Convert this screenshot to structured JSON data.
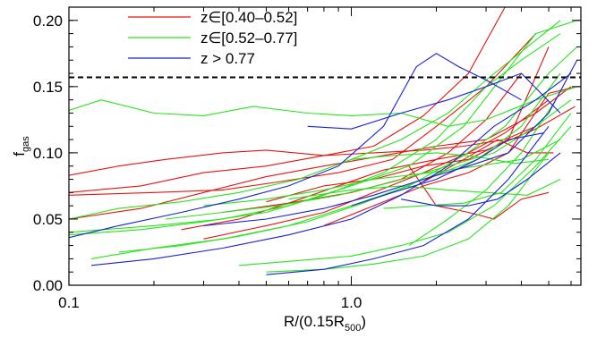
{
  "chart_data": {
    "type": "line",
    "xlabel": "R/(0.15R",
    "xlabel_sub": "500",
    "xlabel_close": ")",
    "ylabel": "f",
    "ylabel_sub": "gas",
    "xscale": "log",
    "xlim": [
      0.1,
      6.5
    ],
    "ylim": [
      0.0,
      0.21
    ],
    "xticks": [
      {
        "value": 0.1,
        "label": "0.1"
      },
      {
        "value": 1.0,
        "label": "1.0"
      }
    ],
    "yticks": [
      {
        "value": 0.0,
        "label": "0.00"
      },
      {
        "value": 0.05,
        "label": "0.05"
      },
      {
        "value": 0.1,
        "label": "0.10"
      },
      {
        "value": 0.15,
        "label": "0.15"
      },
      {
        "value": 0.2,
        "label": "0.20"
      }
    ],
    "legend_position": "top-left",
    "grid": false,
    "reference_line": {
      "y": 0.157,
      "style": "dashed",
      "color": "#000000"
    },
    "groups": [
      {
        "name": "z∈[0.40–0.52]",
        "color": "#e8120f",
        "series": [
          {
            "x": [
              0.1,
              0.15,
              0.22,
              0.35,
              0.5,
              0.8,
              1.2,
              1.8,
              2.5,
              3.5,
              4.5
            ],
            "y": [
              0.083,
              0.09,
              0.095,
              0.1,
              0.102,
              0.098,
              0.1,
              0.102,
              0.105,
              0.11,
              0.12
            ]
          },
          {
            "x": [
              0.1,
              0.18,
              0.3,
              0.5,
              0.8,
              1.2,
              1.8,
              2.6,
              3.5
            ],
            "y": [
              0.07,
              0.075,
              0.085,
              0.09,
              0.098,
              0.105,
              0.128,
              0.16,
              0.21
            ]
          },
          {
            "x": [
              0.1,
              0.2,
              0.35,
              0.55,
              0.9,
              1.4,
              2.0,
              3.0,
              4.5
            ],
            "y": [
              0.068,
              0.07,
              0.072,
              0.078,
              0.085,
              0.095,
              0.12,
              0.15,
              0.19
            ]
          },
          {
            "x": [
              0.1,
              0.18,
              0.3,
              0.5,
              0.8,
              1.3,
              2.0,
              3.0,
              4.5,
              6.0
            ],
            "y": [
              0.05,
              0.058,
              0.07,
              0.082,
              0.09,
              0.098,
              0.105,
              0.11,
              0.13,
              0.15
            ]
          },
          {
            "x": [
              0.25,
              0.4,
              0.6,
              0.9,
              1.3,
              2.0,
              3.0,
              4.5,
              6.2
            ],
            "y": [
              0.042,
              0.05,
              0.062,
              0.075,
              0.087,
              0.095,
              0.102,
              0.118,
              0.135
            ]
          },
          {
            "x": [
              0.3,
              0.5,
              0.8,
              1.2,
              1.8,
              2.6,
              3.5,
              5.0
            ],
            "y": [
              0.035,
              0.045,
              0.055,
              0.07,
              0.085,
              0.1,
              0.115,
              0.14
            ]
          },
          {
            "x": [
              0.35,
              0.6,
              1.0,
              1.5,
              2.2,
              3.0,
              4.0
            ],
            "y": [
              0.055,
              0.062,
              0.07,
              0.08,
              0.1,
              0.125,
              0.16
            ]
          },
          {
            "x": [
              0.5,
              0.8,
              1.2,
              1.8,
              2.6,
              3.6,
              5.0
            ],
            "y": [
              0.063,
              0.075,
              0.08,
              0.09,
              0.095,
              0.11,
              0.18
            ]
          },
          {
            "x": [
              0.8,
              1.2,
              1.8,
              2.6,
              3.6,
              5.0,
              6.3
            ],
            "y": [
              0.045,
              0.06,
              0.075,
              0.085,
              0.1,
              0.145,
              0.15
            ]
          },
          {
            "x": [
              1.6,
              2.0,
              2.6,
              3.2,
              4.0,
              5.0
            ],
            "y": [
              0.09,
              0.06,
              0.055,
              0.05,
              0.065,
              0.07
            ]
          },
          {
            "x": [
              1.8,
              2.5,
              3.3,
              4.2,
              5.2
            ],
            "y": [
              0.078,
              0.095,
              0.11,
              0.1,
              0.1
            ]
          }
        ]
      },
      {
        "name": "z∈[0.52–0.77]",
        "color": "#27e41b",
        "series": [
          {
            "x": [
              0.1,
              0.13,
              0.2,
              0.3,
              0.45,
              0.7,
              1.0,
              1.5,
              2.2,
              3.0,
              4.5,
              6.3
            ],
            "y": [
              0.132,
              0.14,
              0.13,
              0.128,
              0.135,
              0.13,
              0.128,
              0.13,
              0.12,
              0.125,
              0.14,
              0.15
            ]
          },
          {
            "x": [
              0.1,
              0.15,
              0.25,
              0.4,
              0.65,
              1.0,
              1.5,
              2.2,
              3.0,
              4.2,
              5.5
            ],
            "y": [
              0.05,
              0.058,
              0.063,
              0.07,
              0.08,
              0.095,
              0.11,
              0.13,
              0.155,
              0.18,
              0.2
            ]
          },
          {
            "x": [
              0.1,
              0.2,
              0.35,
              0.6,
              1.0,
              1.6,
              2.5,
              3.5,
              4.5,
              6.3
            ],
            "y": [
              0.04,
              0.045,
              0.05,
              0.06,
              0.075,
              0.09,
              0.12,
              0.16,
              0.19,
              0.2
            ]
          },
          {
            "x": [
              0.1,
              0.18,
              0.3,
              0.5,
              0.8,
              1.3,
              2.0,
              3.0,
              4.0,
              5.5
            ],
            "y": [
              0.038,
              0.042,
              0.048,
              0.055,
              0.068,
              0.085,
              0.11,
              0.15,
              0.17,
              0.19
            ]
          },
          {
            "x": [
              0.12,
              0.2,
              0.35,
              0.6,
              1.0,
              1.6,
              2.5,
              3.5,
              5.0,
              6.3
            ],
            "y": [
              0.02,
              0.028,
              0.035,
              0.045,
              0.06,
              0.075,
              0.098,
              0.12,
              0.16,
              0.18
            ]
          },
          {
            "x": [
              0.15,
              0.25,
              0.4,
              0.7,
              1.1,
              1.8,
              2.8,
              4.0,
              5.5
            ],
            "y": [
              0.025,
              0.03,
              0.037,
              0.048,
              0.062,
              0.08,
              0.095,
              0.12,
              0.16
            ]
          },
          {
            "x": [
              0.22,
              0.35,
              0.55,
              0.9,
              1.4,
              2.2,
              3.2,
              4.5,
              6.0
            ],
            "y": [
              0.05,
              0.055,
              0.06,
              0.068,
              0.078,
              0.09,
              0.1,
              0.12,
              0.14
            ]
          },
          {
            "x": [
              0.3,
              0.5,
              0.8,
              1.2,
              1.9,
              2.8,
              4.0,
              5.5
            ],
            "y": [
              0.06,
              0.065,
              0.072,
              0.08,
              0.085,
              0.09,
              0.095,
              0.11
            ]
          },
          {
            "x": [
              0.4,
              0.6,
              1.0,
              1.5,
              2.2,
              3.2,
              4.5,
              6.0
            ],
            "y": [
              0.015,
              0.018,
              0.022,
              0.03,
              0.04,
              0.06,
              0.09,
              0.12
            ]
          },
          {
            "x": [
              0.5,
              0.8,
              1.2,
              1.8,
              2.6,
              3.6,
              5.0
            ],
            "y": [
              0.01,
              0.012,
              0.016,
              0.022,
              0.035,
              0.06,
              0.1
            ]
          },
          {
            "x": [
              0.6,
              1.0,
              1.5,
              2.2,
              3.0,
              4.2,
              5.5
            ],
            "y": [
              0.065,
              0.072,
              0.075,
              0.072,
              0.07,
              0.068,
              0.08
            ]
          },
          {
            "x": [
              1.0,
              1.4,
              2.0,
              2.8,
              3.8,
              5.0
            ],
            "y": [
              0.095,
              0.098,
              0.1,
              0.097,
              0.092,
              0.095
            ]
          },
          {
            "x": [
              1.3,
              1.8,
              2.5,
              3.4,
              4.5,
              6.0
            ],
            "y": [
              0.058,
              0.06,
              0.062,
              0.07,
              0.095,
              0.13
            ]
          },
          {
            "x": [
              1.6,
              2.2,
              3.0,
              4.0,
              5.3
            ],
            "y": [
              0.03,
              0.05,
              0.072,
              0.1,
              0.14
            ]
          }
        ]
      },
      {
        "name": "z > 0.77",
        "color": "#1820d8",
        "series": [
          {
            "x": [
              0.1,
              0.15,
              0.25,
              0.4,
              0.6,
              0.9,
              1.3,
              1.7,
              2.0,
              2.4,
              3.0,
              4.0
            ],
            "y": [
              0.036,
              0.045,
              0.055,
              0.065,
              0.075,
              0.09,
              0.12,
              0.165,
              0.175,
              0.165,
              0.155,
              0.14
            ]
          },
          {
            "x": [
              0.12,
              0.2,
              0.35,
              0.6,
              1.0,
              1.5,
              2.2,
              3.2,
              4.5,
              6.0
            ],
            "y": [
              0.015,
              0.02,
              0.028,
              0.038,
              0.05,
              0.068,
              0.09,
              0.12,
              0.14,
              0.16
            ]
          },
          {
            "x": [
              0.3,
              0.5,
              0.8,
              1.2,
              1.8,
              2.6,
              3.6,
              5.0,
              6.3
            ],
            "y": [
              0.045,
              0.05,
              0.058,
              0.068,
              0.08,
              0.09,
              0.1,
              0.13,
              0.17
            ]
          },
          {
            "x": [
              0.5,
              0.8,
              1.2,
              1.8,
              2.6,
              3.6,
              5.0
            ],
            "y": [
              0.008,
              0.012,
              0.02,
              0.03,
              0.05,
              0.08,
              0.12
            ]
          },
          {
            "x": [
              0.7,
              1.0,
              1.5,
              2.2,
              3.0,
              4.0,
              5.5
            ],
            "y": [
              0.12,
              0.118,
              0.13,
              0.14,
              0.15,
              0.16,
              0.13
            ]
          },
          {
            "x": [
              1.0,
              1.4,
              2.0,
              2.8,
              3.6,
              4.8
            ],
            "y": [
              0.06,
              0.07,
              0.08,
              0.095,
              0.11,
              0.115
            ]
          },
          {
            "x": [
              1.5,
              2.0,
              2.6,
              3.3,
              4.2,
              5.5
            ],
            "y": [
              0.065,
              0.06,
              0.06,
              0.065,
              0.08,
              0.1
            ]
          }
        ]
      }
    ]
  }
}
